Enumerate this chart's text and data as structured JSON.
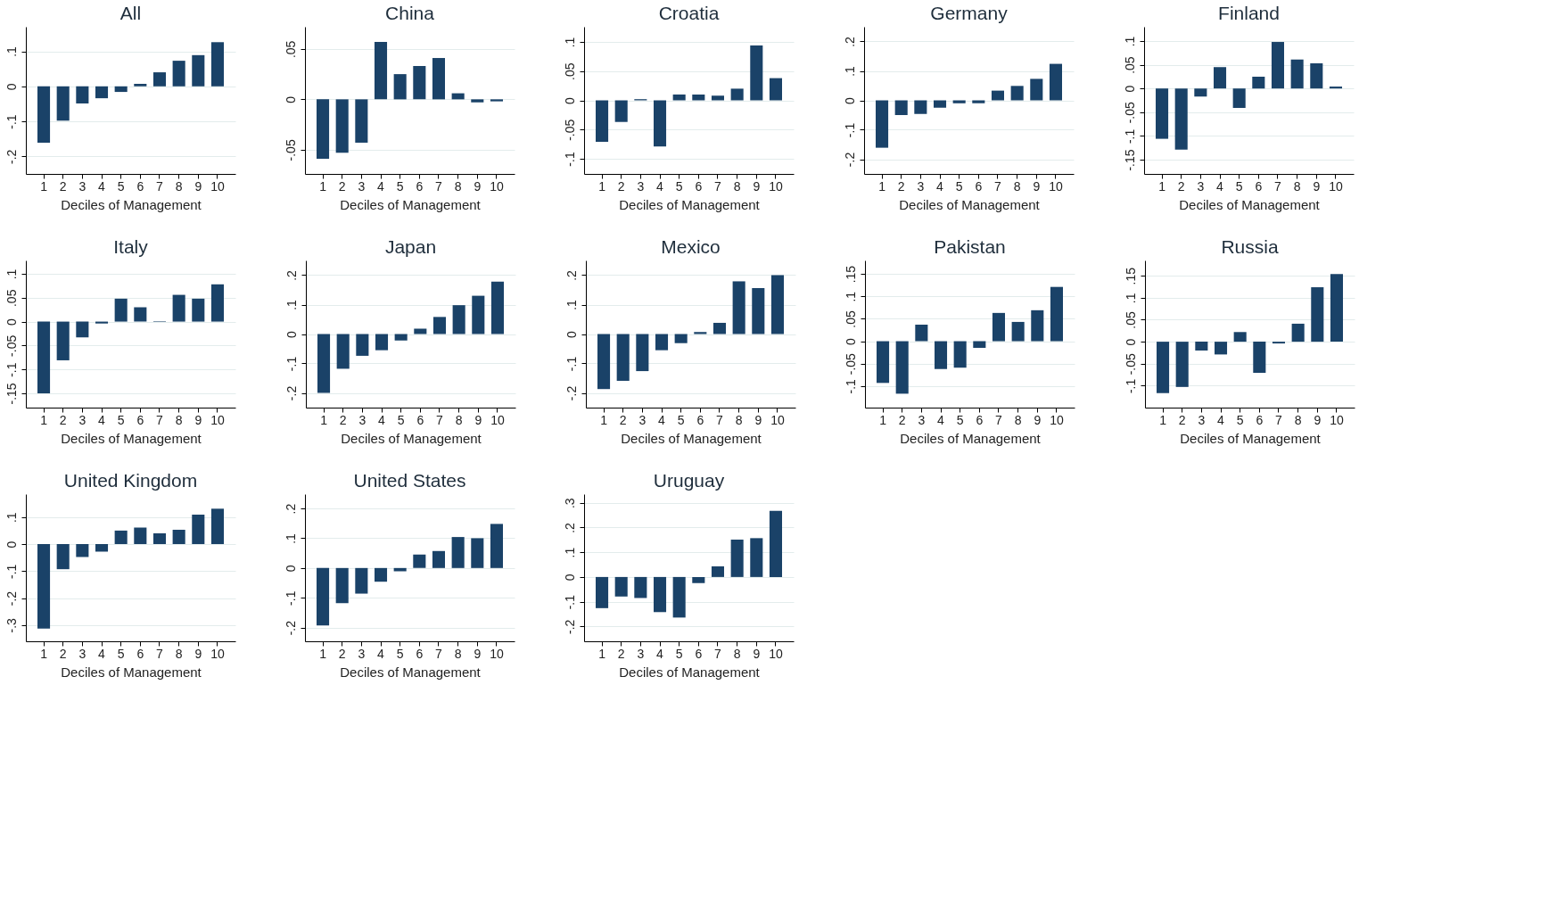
{
  "chart_data": [
    {
      "type": "bar",
      "title": "All",
      "xlabel": "Deciles of Management",
      "categories": [
        "1",
        "2",
        "3",
        "4",
        "5",
        "6",
        "7",
        "8",
        "9",
        "10"
      ],
      "values": [
        -0.161,
        -0.098,
        -0.049,
        -0.034,
        -0.016,
        0.007,
        0.04,
        0.073,
        0.089,
        0.126
      ],
      "color": "#1a4268",
      "ylim": [
        -0.25,
        0.17
      ],
      "yticks": [
        {
          "value": -0.2,
          "label": "-.2"
        },
        {
          "value": -0.1,
          "label": "-.1"
        },
        {
          "value": 0,
          "label": "0"
        },
        {
          "value": 0.1,
          "label": ".1"
        }
      ],
      "grid": "y"
    },
    {
      "type": "bar",
      "title": "China",
      "xlabel": "Deciles of Management",
      "categories": [
        "1",
        "2",
        "3",
        "4",
        "5",
        "6",
        "7",
        "8",
        "9",
        "10"
      ],
      "values": [
        -0.059,
        -0.053,
        -0.043,
        0.057,
        0.025,
        0.033,
        0.041,
        0.006,
        -0.003,
        -0.002
      ],
      "color": "#1a4268",
      "ylim": [
        -0.074,
        0.072
      ],
      "yticks": [
        {
          "value": -0.05,
          "label": "-.05"
        },
        {
          "value": 0,
          "label": "0"
        },
        {
          "value": 0.05,
          "label": ".05"
        }
      ],
      "grid": "y"
    },
    {
      "type": "bar",
      "title": "Croatia",
      "xlabel": "Deciles of Management",
      "categories": [
        "1",
        "2",
        "3",
        "4",
        "5",
        "6",
        "7",
        "8",
        "9",
        "10"
      ],
      "values": [
        -0.071,
        -0.037,
        0.002,
        -0.079,
        0.01,
        0.01,
        0.008,
        0.02,
        0.094,
        0.038
      ],
      "color": "#1a4268",
      "ylim": [
        -0.126,
        0.126
      ],
      "yticks": [
        {
          "value": -0.1,
          "label": "-.1"
        },
        {
          "value": -0.05,
          "label": "-.05"
        },
        {
          "value": 0,
          "label": "0"
        },
        {
          "value": 0.05,
          "label": ".05"
        },
        {
          "value": 0.1,
          "label": ".1"
        }
      ],
      "grid": "y"
    },
    {
      "type": "bar",
      "title": "Germany",
      "xlabel": "Deciles of Management",
      "categories": [
        "1",
        "2",
        "3",
        "4",
        "5",
        "6",
        "7",
        "8",
        "9",
        "10"
      ],
      "values": [
        -0.161,
        -0.05,
        -0.046,
        -0.025,
        -0.01,
        -0.01,
        0.033,
        0.049,
        0.073,
        0.124
      ],
      "color": "#1a4268",
      "ylim": [
        -0.25,
        0.25
      ],
      "yticks": [
        {
          "value": -0.2,
          "label": "-.2"
        },
        {
          "value": -0.1,
          "label": "-.1"
        },
        {
          "value": 0,
          "label": "0"
        },
        {
          "value": 0.1,
          "label": ".1"
        },
        {
          "value": 0.2,
          "label": ".2"
        }
      ],
      "grid": "y"
    },
    {
      "type": "bar",
      "title": "Finland",
      "xlabel": "Deciles of Management",
      "categories": [
        "1",
        "2",
        "3",
        "4",
        "5",
        "6",
        "7",
        "8",
        "9",
        "10"
      ],
      "values": [
        -0.106,
        -0.129,
        -0.017,
        0.045,
        -0.041,
        0.025,
        0.098,
        0.061,
        0.053,
        0.004
      ],
      "color": "#1a4268",
      "ylim": [
        -0.18,
        0.13
      ],
      "yticks": [
        {
          "value": -0.15,
          "label": "-.15"
        },
        {
          "value": -0.1,
          "label": "-.1"
        },
        {
          "value": -0.05,
          "label": "-.05"
        },
        {
          "value": 0,
          "label": "0"
        },
        {
          "value": 0.05,
          "label": ".05"
        },
        {
          "value": 0.1,
          "label": ".1"
        }
      ],
      "grid": "y"
    },
    {
      "type": "bar",
      "title": "Italy",
      "xlabel": "Deciles of Management",
      "categories": [
        "1",
        "2",
        "3",
        "4",
        "5",
        "6",
        "7",
        "8",
        "9",
        "10"
      ],
      "values": [
        -0.15,
        -0.081,
        -0.033,
        -0.004,
        0.048,
        0.03,
        0.001,
        0.056,
        0.048,
        0.078
      ],
      "color": "#1a4268",
      "ylim": [
        -0.18,
        0.128
      ],
      "yticks": [
        {
          "value": -0.15,
          "label": "-.15"
        },
        {
          "value": -0.1,
          "label": "-.1"
        },
        {
          "value": -0.05,
          "label": "-.05"
        },
        {
          "value": 0,
          "label": "0"
        },
        {
          "value": 0.05,
          "label": ".05"
        },
        {
          "value": 0.1,
          "label": ".1"
        }
      ],
      "grid": "y"
    },
    {
      "type": "bar",
      "title": "Japan",
      "xlabel": "Deciles of Management",
      "categories": [
        "1",
        "2",
        "3",
        "4",
        "5",
        "6",
        "7",
        "8",
        "9",
        "10"
      ],
      "values": [
        -0.2,
        -0.118,
        -0.074,
        -0.055,
        -0.022,
        0.018,
        0.058,
        0.098,
        0.13,
        0.178
      ],
      "color": "#1a4268",
      "ylim": [
        -0.25,
        0.25
      ],
      "yticks": [
        {
          "value": -0.2,
          "label": "-.2"
        },
        {
          "value": -0.1,
          "label": "-.1"
        },
        {
          "value": 0,
          "label": "0"
        },
        {
          "value": 0.1,
          "label": ".1"
        },
        {
          "value": 0.2,
          "label": ".2"
        }
      ],
      "grid": "y"
    },
    {
      "type": "bar",
      "title": "Mexico",
      "xlabel": "Deciles of Management",
      "categories": [
        "1",
        "2",
        "3",
        "4",
        "5",
        "6",
        "7",
        "8",
        "9",
        "10"
      ],
      "values": [
        -0.187,
        -0.159,
        -0.126,
        -0.055,
        -0.031,
        0.007,
        0.038,
        0.179,
        0.156,
        0.2
      ],
      "color": "#1a4268",
      "ylim": [
        -0.25,
        0.25
      ],
      "yticks": [
        {
          "value": -0.2,
          "label": "-.2"
        },
        {
          "value": -0.1,
          "label": "-.1"
        },
        {
          "value": 0,
          "label": "0"
        },
        {
          "value": 0.1,
          "label": ".1"
        },
        {
          "value": 0.2,
          "label": ".2"
        }
      ],
      "grid": "y"
    },
    {
      "type": "bar",
      "title": "Pakistan",
      "xlabel": "Deciles of Management",
      "categories": [
        "1",
        "2",
        "3",
        "4",
        "5",
        "6",
        "7",
        "8",
        "9",
        "10"
      ],
      "values": [
        -0.093,
        -0.117,
        0.037,
        -0.062,
        -0.059,
        -0.015,
        0.063,
        0.043,
        0.069,
        0.121
      ],
      "color": "#1a4268",
      "ylim": [
        -0.148,
        0.18
      ],
      "yticks": [
        {
          "value": -0.1,
          "label": "-.1"
        },
        {
          "value": -0.05,
          "label": "-.05"
        },
        {
          "value": 0,
          "label": "0"
        },
        {
          "value": 0.05,
          "label": ".05"
        },
        {
          "value": 0.1,
          "label": ".1"
        },
        {
          "value": 0.15,
          "label": ".15"
        }
      ],
      "grid": "y"
    },
    {
      "type": "bar",
      "title": "Russia",
      "xlabel": "Deciles of Management",
      "categories": [
        "1",
        "2",
        "3",
        "4",
        "5",
        "6",
        "7",
        "8",
        "9",
        "10"
      ],
      "values": [
        -0.117,
        -0.103,
        -0.02,
        -0.029,
        0.022,
        -0.071,
        -0.004,
        0.041,
        0.124,
        0.154
      ],
      "color": "#1a4268",
      "ylim": [
        -0.15,
        0.185
      ],
      "yticks": [
        {
          "value": -0.1,
          "label": "-.1"
        },
        {
          "value": -0.05,
          "label": "-.05"
        },
        {
          "value": 0,
          "label": "0"
        },
        {
          "value": 0.05,
          "label": ".05"
        },
        {
          "value": 0.1,
          "label": ".1"
        },
        {
          "value": 0.15,
          "label": ".15"
        }
      ],
      "grid": "y"
    },
    {
      "type": "bar",
      "title": "United Kingdom",
      "xlabel": "Deciles of Management",
      "categories": [
        "1",
        "2",
        "3",
        "4",
        "5",
        "6",
        "7",
        "8",
        "9",
        "10"
      ],
      "values": [
        -0.313,
        -0.093,
        -0.048,
        -0.028,
        0.05,
        0.061,
        0.04,
        0.053,
        0.109,
        0.131
      ],
      "color": "#1a4268",
      "ylim": [
        -0.36,
        0.185
      ],
      "yticks": [
        {
          "value": -0.3,
          "label": "-.3"
        },
        {
          "value": -0.2,
          "label": "-.2"
        },
        {
          "value": -0.1,
          "label": "-.1"
        },
        {
          "value": 0,
          "label": "0"
        },
        {
          "value": 0.1,
          "label": ".1"
        }
      ],
      "grid": "y"
    },
    {
      "type": "bar",
      "title": "United States",
      "xlabel": "Deciles of Management",
      "categories": [
        "1",
        "2",
        "3",
        "4",
        "5",
        "6",
        "7",
        "8",
        "9",
        "10"
      ],
      "values": [
        -0.193,
        -0.118,
        -0.086,
        -0.046,
        -0.011,
        0.045,
        0.057,
        0.104,
        0.1,
        0.148
      ],
      "color": "#1a4268",
      "ylim": [
        -0.246,
        0.248
      ],
      "yticks": [
        {
          "value": -0.2,
          "label": "-.2"
        },
        {
          "value": -0.1,
          "label": "-.1"
        },
        {
          "value": 0,
          "label": "0"
        },
        {
          "value": 0.1,
          "label": ".1"
        },
        {
          "value": 0.2,
          "label": ".2"
        }
      ],
      "grid": "y"
    },
    {
      "type": "bar",
      "title": "Uruguay",
      "xlabel": "Deciles of Management",
      "categories": [
        "1",
        "2",
        "3",
        "4",
        "5",
        "6",
        "7",
        "8",
        "9",
        "10"
      ],
      "values": [
        -0.126,
        -0.079,
        -0.085,
        -0.142,
        -0.164,
        -0.025,
        0.043,
        0.151,
        0.157,
        0.267
      ],
      "color": "#1a4268",
      "ylim": [
        -0.26,
        0.335
      ],
      "yticks": [
        {
          "value": -0.2,
          "label": "-.2"
        },
        {
          "value": -0.1,
          "label": "-.1"
        },
        {
          "value": 0,
          "label": "0"
        },
        {
          "value": 0.1,
          "label": ".1"
        },
        {
          "value": 0.2,
          "label": ".2"
        },
        {
          "value": 0.3,
          "label": ".3"
        }
      ],
      "grid": "y"
    }
  ]
}
